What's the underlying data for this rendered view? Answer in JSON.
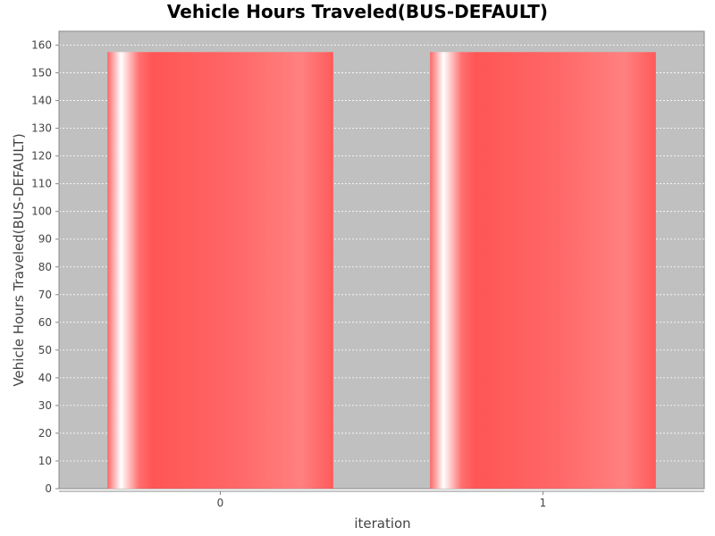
{
  "chart_data": {
    "type": "bar",
    "title": "Vehicle Hours Traveled(BUS-DEFAULT)",
    "xlabel": "iteration",
    "ylabel": "Vehicle Hours Traveled(BUS-DEFAULT)",
    "categories": [
      "0",
      "1"
    ],
    "series": [
      {
        "values": [
          157.5,
          157.5
        ]
      }
    ],
    "ylim": [
      0,
      165
    ],
    "yticks": [
      0,
      10,
      20,
      30,
      40,
      50,
      60,
      70,
      80,
      90,
      100,
      110,
      120,
      130,
      140,
      150,
      160
    ],
    "grid": true,
    "legend": "none"
  },
  "colors": {
    "plot_background": "#c0c0c0",
    "bar_main": "#ff5555",
    "bar_highlight": "#ffffff",
    "bar_light": "#ff8080",
    "gridline": "#ffffff",
    "axis": "#888888"
  }
}
